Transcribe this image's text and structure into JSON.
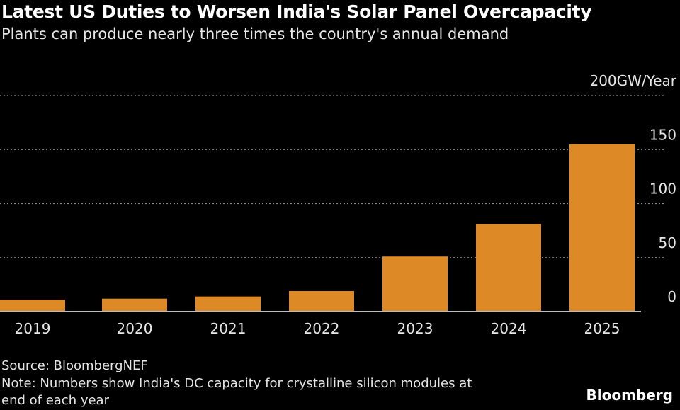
{
  "chart_data": {
    "type": "bar",
    "title": "Latest US Duties to Worsen India's Solar Panel Overcapacity",
    "subtitle": "Plants can produce nearly three times the country's annual demand",
    "categories": [
      "2019",
      "2020",
      "2021",
      "2022",
      "2023",
      "2024",
      "2025"
    ],
    "values": [
      11,
      12,
      14,
      19,
      51,
      81,
      155
    ],
    "ylabel": "GW/Year",
    "ylim": [
      0,
      200
    ],
    "yticks": [
      {
        "value": 0,
        "label": "0"
      },
      {
        "value": 50,
        "label": "50"
      },
      {
        "value": 100,
        "label": "100"
      },
      {
        "value": 150,
        "label": "150"
      },
      {
        "value": 200,
        "label": "200GW/Year"
      }
    ],
    "grid": true,
    "bar_color": "#dd8a26",
    "source": "Source: BloombergNEF",
    "note_line1": "Note: Numbers show India's DC capacity for crystalline silicon modules at",
    "note_line2": "end of each year",
    "brand": "Bloomberg"
  }
}
